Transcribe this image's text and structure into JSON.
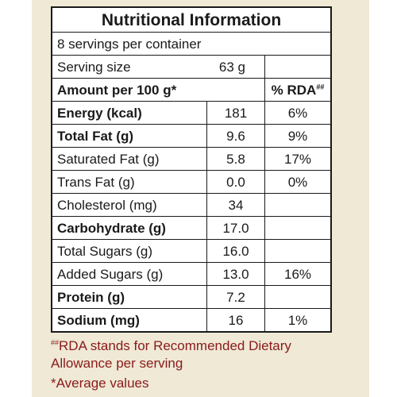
{
  "title": "Nutritional Information",
  "servings_per_container": "8 servings per container",
  "serving_size_label": "Serving size",
  "serving_size_value": "63 g",
  "header": {
    "amount_label": "Amount per 100 g*",
    "rda_label": "% RDA",
    "rda_mark": "##"
  },
  "rows": [
    {
      "name": "Energy (kcal)",
      "value": "181",
      "rda": "6%",
      "bold": true
    },
    {
      "name": "Total Fat (g)",
      "value": "9.6",
      "rda": "9%",
      "bold": true
    },
    {
      "name": "Saturated Fat (g)",
      "value": "5.8",
      "rda": "17%",
      "bold": false
    },
    {
      "name": "Trans Fat (g)",
      "value": "0.0",
      "rda": "0%",
      "bold": false
    },
    {
      "name": "Cholesterol (mg)",
      "value": "34",
      "rda": "",
      "bold": false
    },
    {
      "name": "Carbohydrate (g)",
      "value": "17.0",
      "rda": "",
      "bold": true
    },
    {
      "name": "Total Sugars (g)",
      "value": "16.0",
      "rda": "",
      "bold": false
    },
    {
      "name": "Added Sugars (g)",
      "value": "13.0",
      "rda": "16%",
      "bold": false
    },
    {
      "name": "Protein (g)",
      "value": "7.2",
      "rda": "",
      "bold": true
    },
    {
      "name": "Sodium (mg)",
      "value": "16",
      "rda": "1%",
      "bold": true
    }
  ],
  "footnotes": {
    "rda_mark": "##",
    "rda_note": "RDA stands for Recommended Dietary Allowance per serving",
    "average_note": "*Average values"
  }
}
